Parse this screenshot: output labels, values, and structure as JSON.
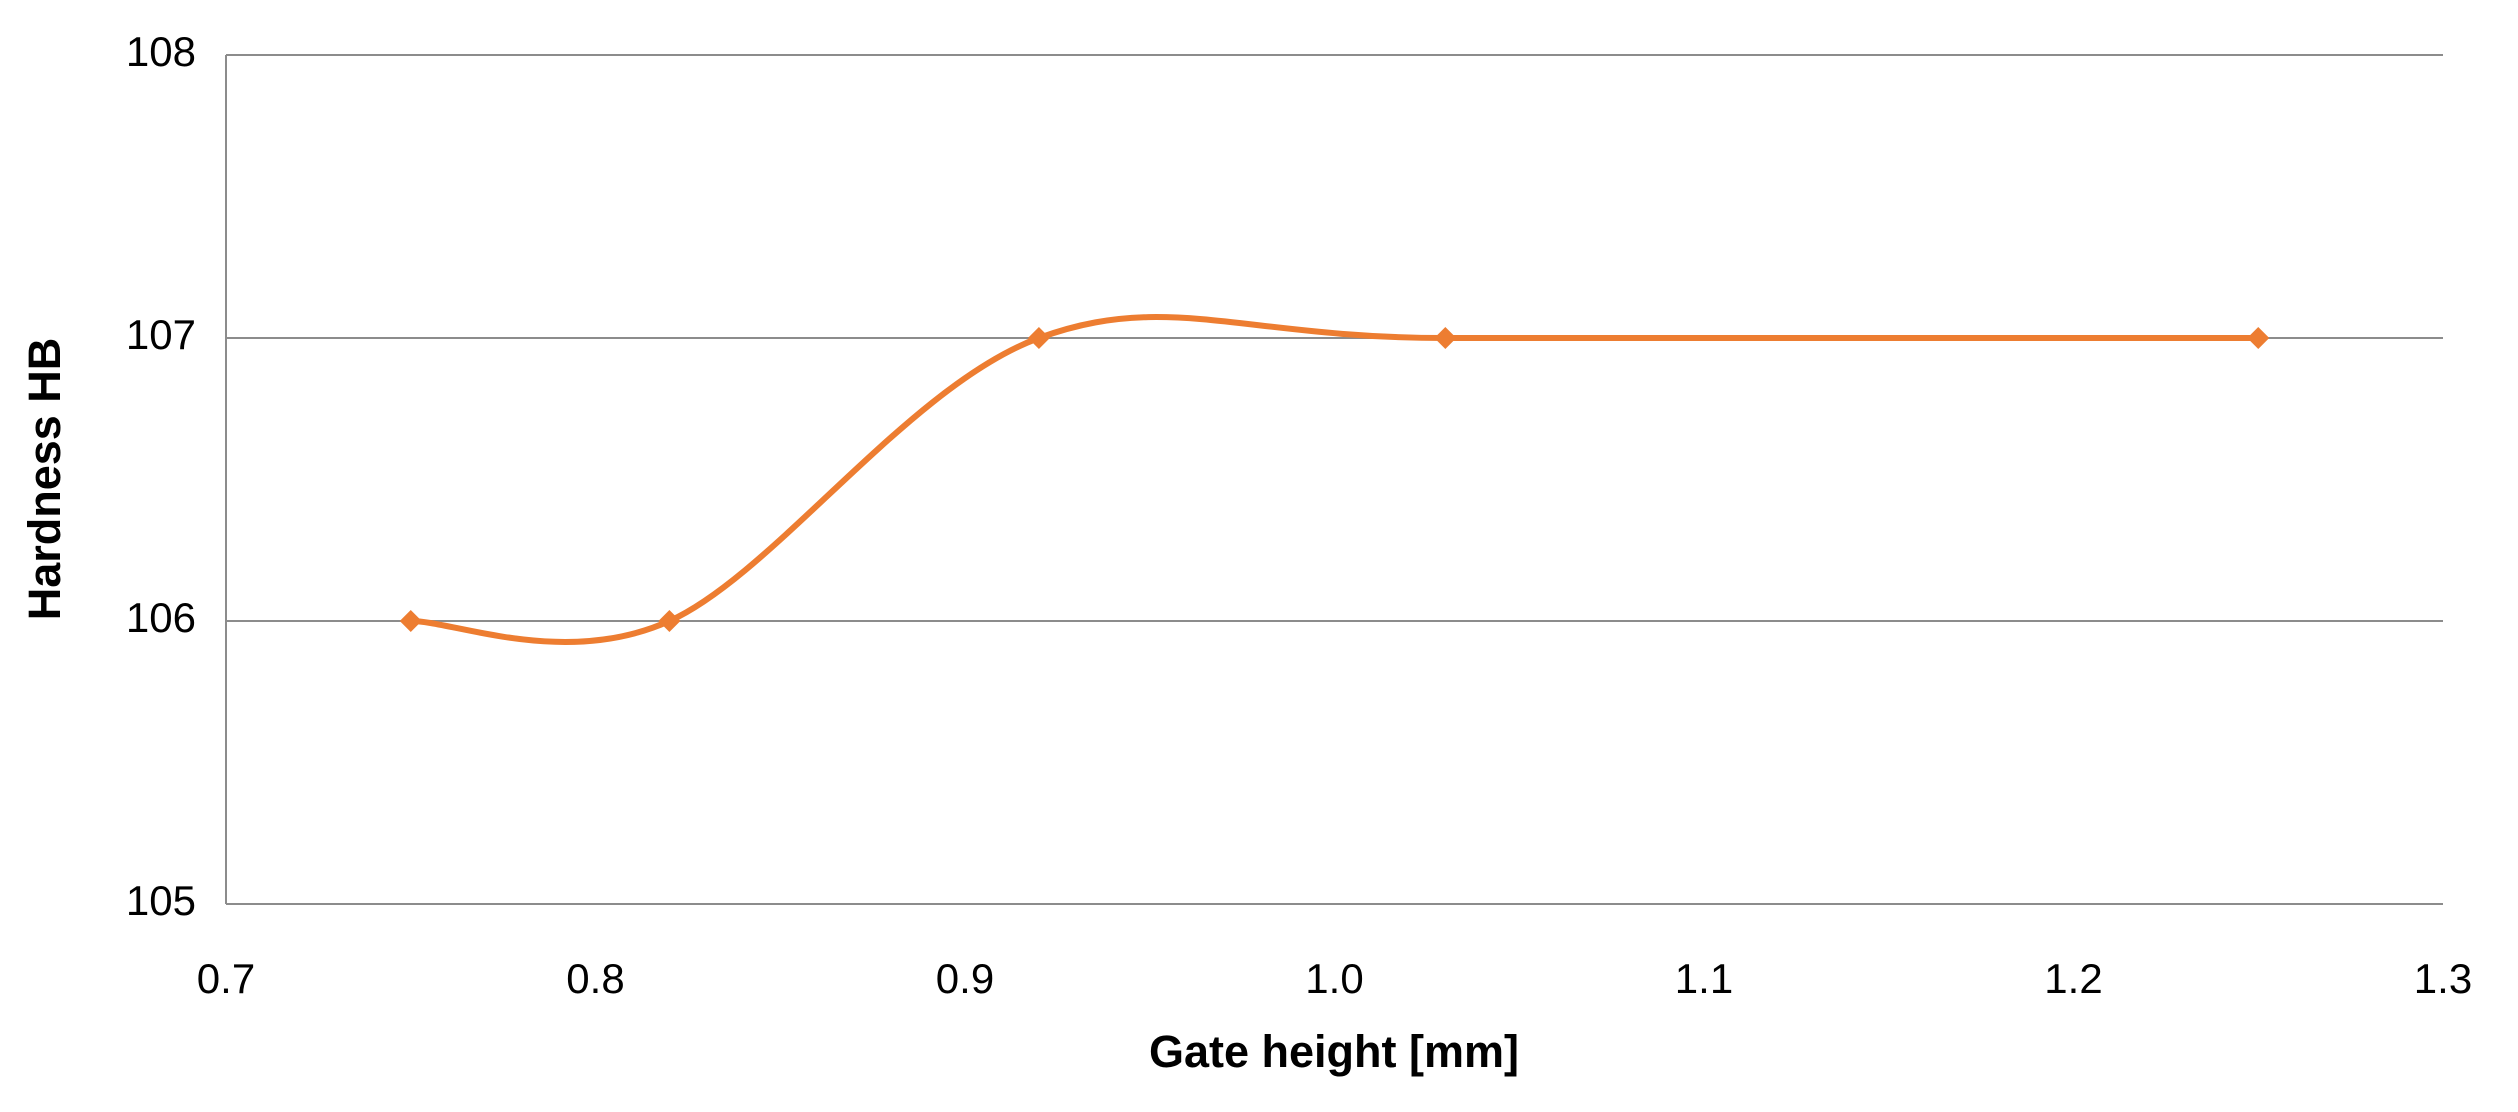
{
  "chart_data": {
    "type": "line",
    "smooth": true,
    "x_label": "Gate height [mm]",
    "y_label": "Hardness HB",
    "x": [
      0.75,
      0.82,
      0.92,
      1.03,
      1.25
    ],
    "series": [
      {
        "color": "#ed7d31",
        "values": [
          106,
          106,
          107,
          107,
          107
        ]
      }
    ],
    "xlim": [
      0.7,
      1.3
    ],
    "xticks": [
      0.7,
      0.8,
      0.9,
      {
        "value": 1,
        "label": "1.0"
      },
      1.1,
      1.2,
      1.3
    ],
    "ylim": [
      105,
      108
    ],
    "yticks": [
      105,
      106,
      107,
      108
    ],
    "grid": true
  }
}
